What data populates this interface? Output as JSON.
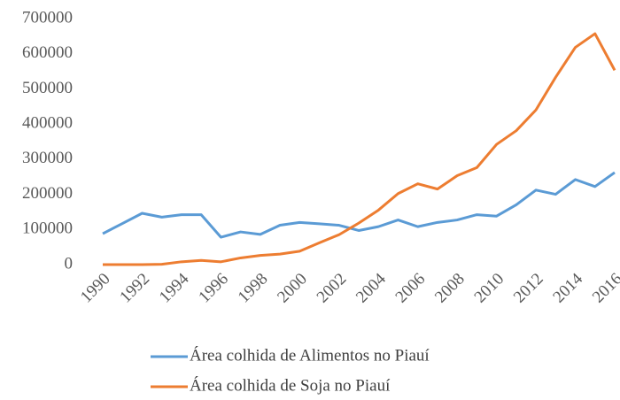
{
  "chart_data": {
    "type": "line",
    "x": [
      1990,
      1991,
      1992,
      1993,
      1994,
      1995,
      1996,
      1997,
      1998,
      1999,
      2000,
      2001,
      2002,
      2003,
      2004,
      2005,
      2006,
      2007,
      2008,
      2009,
      2010,
      2011,
      2012,
      2013,
      2014,
      2015,
      2016
    ],
    "series": [
      {
        "name": "Área colhida de Alimentos no Piauí",
        "color": "#5b9bd5",
        "values": [
          88000,
          117000,
          146000,
          135000,
          142000,
          142000,
          78000,
          93000,
          86000,
          112000,
          120000,
          116000,
          112000,
          97000,
          108000,
          127000,
          108000,
          120000,
          127000,
          142000,
          138000,
          170000,
          212000,
          200000,
          242000,
          222000,
          262000
        ]
      },
      {
        "name": "Área colhida de Soja no Piauí",
        "color": "#ed7d31",
        "values": [
          0,
          0,
          0,
          1000,
          8000,
          12000,
          8000,
          19000,
          26000,
          30000,
          38000,
          62000,
          85000,
          118000,
          155000,
          202000,
          230000,
          215000,
          253000,
          276000,
          342000,
          381000,
          440000,
          533000,
          618000,
          657000,
          553000
        ]
      }
    ],
    "xlim": [
      1990,
      2016
    ],
    "xticks": [
      1990,
      1992,
      1994,
      1996,
      1998,
      2000,
      2002,
      2004,
      2006,
      2008,
      2010,
      2012,
      2014,
      2016
    ],
    "ylim": [
      0,
      700000
    ],
    "yticks": [
      0,
      100000,
      200000,
      300000,
      400000,
      500000,
      600000,
      700000
    ],
    "legend": "bottom"
  }
}
